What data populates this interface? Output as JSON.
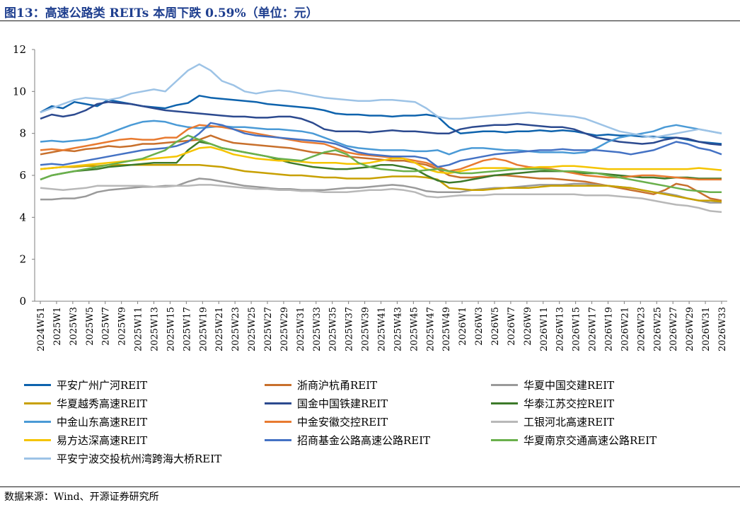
{
  "figure": {
    "title": "图13：高速公路类 REITs 本周下跌 0.59%（单位：元）",
    "source": "数据来源：Wind、开源证券研究所"
  },
  "chart_data": {
    "type": "line",
    "title": "图13：高速公路类 REITs 本周下跌 0.59%（单位：元）",
    "xlabel": "",
    "ylabel": "",
    "ylim": [
      0,
      12
    ],
    "yticks": [
      0,
      2,
      4,
      6,
      8,
      10,
      12
    ],
    "grid": false,
    "legend_position": "bottom",
    "x_tick_labels": [
      "2024W51",
      "2025W1",
      "2025W3",
      "2025W5",
      "2025W7",
      "2025W9",
      "2025W11",
      "2025W13",
      "2025W15",
      "2025W17",
      "2025W19",
      "2025W21",
      "2025W23",
      "2025W25",
      "2025W27",
      "2025W29",
      "2025W31",
      "2025W33",
      "2025W35",
      "2025W37",
      "2025W39",
      "2025W41",
      "2025W43",
      "2025W45",
      "2025W47",
      "2025W49",
      "2026W1",
      "2026W3",
      "2026W5",
      "2026W7",
      "2026W9",
      "2026W11",
      "2026W13",
      "2026W15",
      "2026W17",
      "2026W19",
      "2026W21",
      "2026W23",
      "2026W25",
      "2026W27",
      "2026W29",
      "2026W31",
      "2026W33"
    ],
    "series": [
      {
        "name": "平安广州广河REIT",
        "color": "#0e63ad",
        "values": [
          9.0,
          9.3,
          9.2,
          9.5,
          9.4,
          9.3,
          9.6,
          9.5,
          9.4,
          9.3,
          9.25,
          9.2,
          9.35,
          9.45,
          9.8,
          9.7,
          9.65,
          9.6,
          9.55,
          9.5,
          9.4,
          9.35,
          9.3,
          9.25,
          9.2,
          9.1,
          8.95,
          8.9,
          8.9,
          8.85,
          8.85,
          8.8,
          8.85,
          8.85,
          8.9,
          8.8,
          8.3,
          8.0,
          8.05,
          8.1,
          8.1,
          8.05,
          8.1,
          8.1,
          8.15,
          8.1,
          8.15,
          8.1,
          8.0,
          7.9,
          7.95,
          7.9,
          7.9,
          7.85,
          7.85,
          7.8,
          7.8,
          7.7,
          7.6,
          7.55,
          7.5
        ],
        "color_note": "dark blue"
      },
      {
        "name": "浙商沪杭甬REIT",
        "color": "#c8702c",
        "values": [
          7.0,
          7.1,
          7.2,
          7.15,
          7.25,
          7.3,
          7.4,
          7.35,
          7.4,
          7.5,
          7.5,
          7.55,
          7.6,
          7.65,
          7.7,
          7.9,
          7.7,
          7.55,
          7.5,
          7.45,
          7.4,
          7.35,
          7.3,
          7.2,
          7.1,
          7.05,
          7.0,
          6.9,
          6.85,
          6.8,
          6.75,
          6.7,
          6.7,
          6.6,
          6.5,
          6.3,
          6.0,
          5.9,
          5.9,
          5.95,
          6.0,
          6.0,
          5.95,
          5.9,
          5.85,
          5.85,
          5.8,
          5.75,
          5.7,
          5.6,
          5.5,
          5.4,
          5.3,
          5.2,
          5.1,
          5.3,
          5.6,
          5.5,
          5.2,
          4.9,
          4.8
        ]
      },
      {
        "name": "华夏中国交建REIT",
        "color": "#9a9a9a",
        "values": [
          4.85,
          4.85,
          4.9,
          4.9,
          5.0,
          5.2,
          5.3,
          5.35,
          5.4,
          5.45,
          5.45,
          5.5,
          5.5,
          5.7,
          5.85,
          5.8,
          5.7,
          5.6,
          5.5,
          5.45,
          5.4,
          5.35,
          5.35,
          5.3,
          5.3,
          5.3,
          5.35,
          5.4,
          5.4,
          5.45,
          5.5,
          5.55,
          5.5,
          5.4,
          5.25,
          5.2,
          5.2,
          5.2,
          5.3,
          5.35,
          5.4,
          5.4,
          5.45,
          5.5,
          5.55,
          5.55,
          5.55,
          5.6,
          5.6,
          5.55,
          5.5,
          5.45,
          5.4,
          5.3,
          5.2,
          5.15,
          5.05,
          4.9,
          4.8,
          4.7,
          4.7
        ]
      },
      {
        "name": "华夏越秀高速REIT",
        "color": "#c8a000",
        "values": [
          6.3,
          6.35,
          6.4,
          6.4,
          6.45,
          6.45,
          6.5,
          6.5,
          6.5,
          6.5,
          6.5,
          6.5,
          6.5,
          6.5,
          6.5,
          6.45,
          6.4,
          6.3,
          6.2,
          6.15,
          6.1,
          6.05,
          6.0,
          6.0,
          5.95,
          5.9,
          5.9,
          5.85,
          5.85,
          5.85,
          5.9,
          5.95,
          5.95,
          5.95,
          5.9,
          5.8,
          5.4,
          5.35,
          5.3,
          5.3,
          5.35,
          5.4,
          5.4,
          5.4,
          5.45,
          5.5,
          5.5,
          5.5,
          5.5,
          5.5,
          5.5,
          5.45,
          5.4,
          5.3,
          5.2,
          5.1,
          5.0,
          4.9,
          4.8,
          4.8,
          4.75
        ]
      },
      {
        "name": "国金中国铁建REIT",
        "color": "#2c4a8f",
        "values": [
          8.7,
          8.9,
          8.8,
          8.9,
          9.1,
          9.4,
          9.5,
          9.45,
          9.4,
          9.3,
          9.2,
          9.1,
          9.05,
          9.0,
          8.95,
          8.9,
          8.85,
          8.8,
          8.8,
          8.75,
          8.75,
          8.8,
          8.8,
          8.7,
          8.5,
          8.2,
          8.1,
          8.1,
          8.1,
          8.05,
          8.1,
          8.15,
          8.1,
          8.1,
          8.05,
          8.0,
          8.0,
          8.2,
          8.3,
          8.35,
          8.4,
          8.4,
          8.45,
          8.4,
          8.35,
          8.3,
          8.3,
          8.2,
          8.0,
          7.8,
          7.7,
          7.6,
          7.55,
          7.5,
          7.55,
          7.7,
          7.8,
          7.75,
          7.6,
          7.5,
          7.45
        ]
      },
      {
        "name": "华泰江苏交控REIT",
        "color": "#3d7a2a",
        "values": [
          5.8,
          6.0,
          6.1,
          6.2,
          6.25,
          6.3,
          6.4,
          6.45,
          6.5,
          6.55,
          6.6,
          6.6,
          6.6,
          7.2,
          7.6,
          7.5,
          7.3,
          7.2,
          7.1,
          7.0,
          6.9,
          6.75,
          6.6,
          6.5,
          6.4,
          6.35,
          6.3,
          6.3,
          6.35,
          6.4,
          6.5,
          6.5,
          6.4,
          6.3,
          6.0,
          5.75,
          5.65,
          5.7,
          5.8,
          5.9,
          6.0,
          6.05,
          6.1,
          6.15,
          6.2,
          6.2,
          6.2,
          6.15,
          6.1,
          6.1,
          6.05,
          6.0,
          5.95,
          5.9,
          5.9,
          5.85,
          5.9,
          5.9,
          5.85,
          5.85,
          5.85
        ]
      },
      {
        "name": "中金山东高速REIT",
        "color": "#4a9ad6",
        "values": [
          7.6,
          7.65,
          7.6,
          7.65,
          7.7,
          7.8,
          8.0,
          8.2,
          8.4,
          8.55,
          8.6,
          8.55,
          8.4,
          8.3,
          8.25,
          8.3,
          8.35,
          8.3,
          8.3,
          8.25,
          8.2,
          8.2,
          8.15,
          8.1,
          8.0,
          7.8,
          7.6,
          7.4,
          7.3,
          7.25,
          7.2,
          7.2,
          7.2,
          7.15,
          7.15,
          7.2,
          7.0,
          7.2,
          7.3,
          7.3,
          7.25,
          7.2,
          7.2,
          7.15,
          7.1,
          7.1,
          7.1,
          7.05,
          7.1,
          7.3,
          7.6,
          7.8,
          7.9,
          8.0,
          8.1,
          8.3,
          8.4,
          8.3,
          8.2,
          8.1,
          8.0
        ]
      },
      {
        "name": "中金安徽交控REIT",
        "color": "#e87a30",
        "values": [
          7.2,
          7.25,
          7.2,
          7.3,
          7.4,
          7.5,
          7.6,
          7.7,
          7.75,
          7.7,
          7.7,
          7.8,
          7.8,
          8.2,
          8.4,
          8.35,
          8.3,
          8.2,
          8.1,
          8.0,
          7.9,
          7.8,
          7.7,
          7.6,
          7.55,
          7.5,
          7.3,
          7.1,
          7.0,
          6.95,
          6.9,
          6.85,
          6.8,
          6.7,
          6.6,
          6.4,
          6.2,
          6.3,
          6.5,
          6.7,
          6.8,
          6.7,
          6.5,
          6.4,
          6.35,
          6.3,
          6.2,
          6.1,
          6.0,
          5.95,
          5.9,
          5.9,
          5.95,
          6.0,
          6.0,
          5.95,
          5.9,
          5.85,
          5.8,
          5.8,
          5.8
        ]
      },
      {
        "name": "工银河北高速REIT",
        "color": "#b8b8b8",
        "values": [
          5.4,
          5.35,
          5.3,
          5.35,
          5.4,
          5.5,
          5.5,
          5.5,
          5.5,
          5.5,
          5.45,
          5.45,
          5.5,
          5.5,
          5.55,
          5.55,
          5.5,
          5.45,
          5.4,
          5.35,
          5.35,
          5.3,
          5.3,
          5.25,
          5.25,
          5.2,
          5.2,
          5.2,
          5.25,
          5.3,
          5.3,
          5.35,
          5.3,
          5.2,
          5.0,
          4.95,
          5.0,
          5.05,
          5.05,
          5.05,
          5.1,
          5.1,
          5.1,
          5.1,
          5.1,
          5.1,
          5.1,
          5.1,
          5.05,
          5.05,
          5.05,
          5.0,
          4.95,
          4.9,
          4.8,
          4.7,
          4.6,
          4.55,
          4.45,
          4.3,
          4.25
        ]
      },
      {
        "name": "易方达深高速REIT",
        "color": "#f5c400",
        "values": [
          6.3,
          6.35,
          6.4,
          6.45,
          6.5,
          6.55,
          6.6,
          6.65,
          6.7,
          6.75,
          6.8,
          6.85,
          6.9,
          7.1,
          7.3,
          7.35,
          7.2,
          7.0,
          6.9,
          6.8,
          6.75,
          6.7,
          6.7,
          6.65,
          6.6,
          6.6,
          6.6,
          6.55,
          6.55,
          6.6,
          6.7,
          6.8,
          6.8,
          6.6,
          6.3,
          6.15,
          6.1,
          6.2,
          6.3,
          6.35,
          6.35,
          6.35,
          6.3,
          6.35,
          6.4,
          6.4,
          6.45,
          6.45,
          6.4,
          6.35,
          6.3,
          6.3,
          6.3,
          6.3,
          6.3,
          6.3,
          6.3,
          6.3,
          6.35,
          6.3,
          6.25
        ]
      },
      {
        "name": "招商基金公路高速公路REIT",
        "color": "#4472c4",
        "values": [
          6.5,
          6.55,
          6.5,
          6.6,
          6.7,
          6.8,
          6.9,
          7.0,
          7.1,
          7.2,
          7.25,
          7.3,
          7.4,
          7.6,
          8.0,
          8.5,
          8.4,
          8.2,
          8.0,
          7.9,
          7.85,
          7.8,
          7.75,
          7.7,
          7.65,
          7.6,
          7.5,
          7.3,
          7.1,
          7.0,
          6.95,
          6.9,
          6.9,
          6.9,
          6.8,
          6.4,
          6.5,
          6.7,
          6.8,
          6.9,
          7.0,
          7.05,
          7.1,
          7.15,
          7.2,
          7.2,
          7.25,
          7.2,
          7.2,
          7.2,
          7.15,
          7.1,
          7.0,
          7.1,
          7.2,
          7.4,
          7.6,
          7.5,
          7.3,
          7.2,
          7.0
        ]
      },
      {
        "name": "华夏南京交通高速公路REIT",
        "color": "#6ab04c",
        "values": [
          5.8,
          6.0,
          6.1,
          6.2,
          6.3,
          6.4,
          6.5,
          6.6,
          6.7,
          6.8,
          7.0,
          7.2,
          7.6,
          7.9,
          7.7,
          7.5,
          7.3,
          7.2,
          7.1,
          7.0,
          6.9,
          6.8,
          6.75,
          6.7,
          6.9,
          7.1,
          7.2,
          7.0,
          6.6,
          6.4,
          6.3,
          6.25,
          6.2,
          6.2,
          6.25,
          6.3,
          6.2,
          6.1,
          6.1,
          6.15,
          6.2,
          6.25,
          6.3,
          6.3,
          6.3,
          6.25,
          6.2,
          6.2,
          6.15,
          6.1,
          6.0,
          5.9,
          5.8,
          5.7,
          5.6,
          5.5,
          5.4,
          5.3,
          5.25,
          5.2,
          5.2
        ]
      },
      {
        "name": "平安宁波交投杭州湾跨海大桥REIT",
        "color": "#9dc3e6",
        "values": [
          9.0,
          9.2,
          9.4,
          9.6,
          9.7,
          9.65,
          9.6,
          9.7,
          9.9,
          10.0,
          10.1,
          10.0,
          10.5,
          11.0,
          11.3,
          11.0,
          10.5,
          10.3,
          10.0,
          9.9,
          10.0,
          10.05,
          10.0,
          9.9,
          9.8,
          9.7,
          9.65,
          9.6,
          9.55,
          9.55,
          9.6,
          9.6,
          9.55,
          9.5,
          9.2,
          8.8,
          8.7,
          8.7,
          8.75,
          8.8,
          8.85,
          8.9,
          8.95,
          9.0,
          8.95,
          8.9,
          8.85,
          8.8,
          8.7,
          8.5,
          8.3,
          8.1,
          8.0,
          7.9,
          7.8,
          7.9,
          8.0,
          8.1,
          8.2,
          8.1,
          8.0
        ]
      }
    ]
  }
}
